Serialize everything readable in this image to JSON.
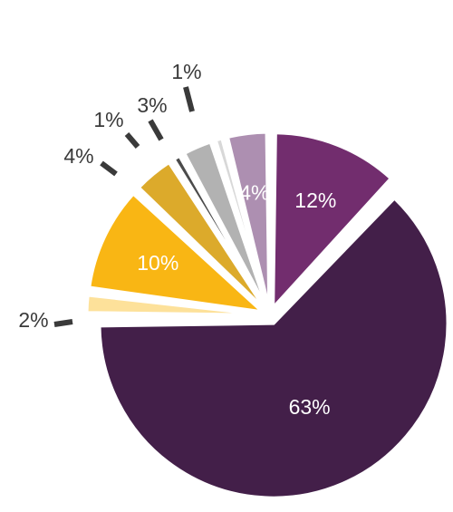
{
  "chart_data": {
    "type": "pie",
    "title": "",
    "slices": [
      {
        "value": 12,
        "label": "12%",
        "color": "#722d6e",
        "label_inside": true
      },
      {
        "value": 63,
        "label": "63%",
        "color": "#431f49",
        "label_inside": true
      },
      {
        "value": 2,
        "label": "2%",
        "color": "#fde19a",
        "label_inside": false
      },
      {
        "value": 10,
        "label": "10%",
        "color": "#f9b614",
        "label_inside": true
      },
      {
        "value": 4,
        "label": "4%",
        "color": "#dcaa2b",
        "label_inside": false
      },
      {
        "value": 1,
        "label": "1%",
        "color": "#4b4b4b",
        "label_inside": false
      },
      {
        "value": 3,
        "label": "3%",
        "color": "#b2b2b2",
        "label_inside": false
      },
      {
        "value": 1,
        "label": "1%",
        "color": "#d8d8d8",
        "label_inside": false
      },
      {
        "value": 4,
        "label": "4%",
        "color": "#ad8fb1",
        "label_inside": true
      }
    ],
    "inside_label_color": "#ffffff",
    "outside_label_color": "#3a3a3a",
    "leader_color": "#3a3a3a"
  }
}
